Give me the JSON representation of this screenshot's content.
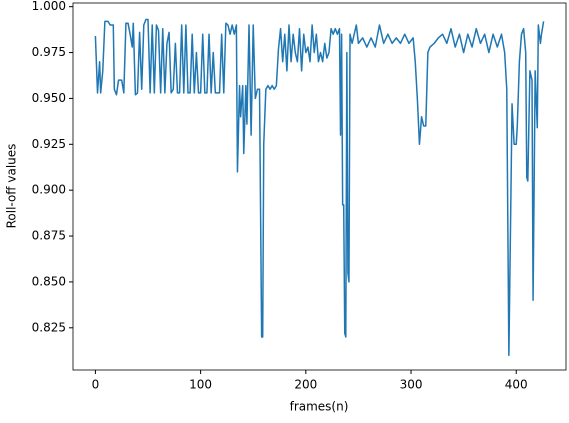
{
  "chart_data": {
    "type": "line",
    "xlabel": "frames(n)",
    "ylabel": "Roll-off values",
    "xlim": [
      -21.3,
      447.3
    ],
    "ylim": [
      0.802,
      1.002
    ],
    "xticks": [
      0,
      100,
      200,
      300,
      400
    ],
    "yticks": [
      0.825,
      {
        "value": 0.85,
        "label": "0.850"
      },
      0.875,
      {
        "value": 0.9,
        "label": "0.900"
      },
      0.925,
      {
        "value": 0.95,
        "label": "0.950"
      },
      0.975,
      {
        "value": 1.0,
        "label": "1.000"
      }
    ],
    "grid": false,
    "series": [
      {
        "color": "#1f77b4",
        "x": [
          0,
          2,
          4,
          5,
          7,
          9,
          12,
          14,
          17,
          18,
          20,
          22,
          25,
          27,
          29,
          31,
          33,
          35,
          36,
          38,
          40,
          42,
          44,
          46,
          48,
          50,
          52,
          54,
          56,
          58,
          60,
          62,
          64,
          66,
          68,
          70,
          72,
          74,
          76,
          78,
          80,
          82,
          84,
          86,
          88,
          90,
          92,
          94,
          96,
          98,
          100,
          102,
          104,
          106,
          108,
          110,
          112,
          114,
          116,
          118,
          120,
          122,
          124,
          126,
          128,
          130,
          132,
          134,
          135,
          137,
          138,
          140,
          141,
          143,
          144,
          146,
          148,
          150,
          152,
          154,
          156,
          158,
          159,
          160,
          162,
          164,
          166,
          168,
          170,
          172,
          174,
          176,
          178,
          180,
          182,
          184,
          186,
          188,
          190,
          192,
          194,
          196,
          198,
          200,
          202,
          204,
          206,
          208,
          210,
          212,
          214,
          216,
          218,
          220,
          222,
          224,
          226,
          228,
          230,
          232,
          233,
          234,
          235,
          236,
          237,
          238,
          239,
          240,
          241,
          242,
          244,
          246,
          248,
          250,
          254,
          258,
          262,
          266,
          270,
          274,
          278,
          282,
          286,
          290,
          294,
          298,
          302,
          304,
          306,
          308,
          310,
          312,
          314,
          316,
          318,
          322,
          326,
          330,
          334,
          338,
          342,
          346,
          350,
          354,
          358,
          362,
          366,
          370,
          374,
          378,
          382,
          386,
          389,
          391,
          393,
          395,
          396,
          398,
          400,
          401,
          403,
          405,
          407,
          409,
          410,
          411,
          413,
          415,
          416,
          418,
          420,
          421,
          423,
          424,
          426
        ],
        "values": [
          0.984,
          0.953,
          0.97,
          0.953,
          0.965,
          0.992,
          0.992,
          0.99,
          0.99,
          0.955,
          0.952,
          0.96,
          0.96,
          0.953,
          0.991,
          0.991,
          0.985,
          0.978,
          0.991,
          0.952,
          0.953,
          0.986,
          0.955,
          0.99,
          0.993,
          0.993,
          0.953,
          0.99,
          0.953,
          0.99,
          0.987,
          0.953,
          0.988,
          0.953,
          0.98,
          0.986,
          0.953,
          0.955,
          0.98,
          0.953,
          0.953,
          0.99,
          0.953,
          0.99,
          0.953,
          0.953,
          0.985,
          0.953,
          0.975,
          0.953,
          0.953,
          0.985,
          0.953,
          0.953,
          0.985,
          0.953,
          0.975,
          0.953,
          0.953,
          0.953,
          0.985,
          0.953,
          0.991,
          0.99,
          0.985,
          0.99,
          0.985,
          0.99,
          0.91,
          0.957,
          0.94,
          0.957,
          0.92,
          0.957,
          0.936,
          0.99,
          0.93,
          0.99,
          0.95,
          0.955,
          0.955,
          0.82,
          0.82,
          0.925,
          0.955,
          0.957,
          0.955,
          0.957,
          0.955,
          0.957,
          0.977,
          0.988,
          0.97,
          0.985,
          0.965,
          0.99,
          0.97,
          0.985,
          0.975,
          0.97,
          0.988,
          0.965,
          0.985,
          0.975,
          0.978,
          0.97,
          0.99,
          0.975,
          0.985,
          0.97,
          0.975,
          0.97,
          0.98,
          0.972,
          0.975,
          0.988,
          0.985,
          0.988,
          0.985,
          0.988,
          0.93,
          0.985,
          0.892,
          0.892,
          0.822,
          0.82,
          0.975,
          0.855,
          0.85,
          0.985,
          0.98,
          0.985,
          0.99,
          0.98,
          0.983,
          0.978,
          0.983,
          0.978,
          0.99,
          0.98,
          0.985,
          0.98,
          0.983,
          0.98,
          0.985,
          0.98,
          0.983,
          0.97,
          0.95,
          0.925,
          0.94,
          0.935,
          0.935,
          0.975,
          0.978,
          0.98,
          0.983,
          0.985,
          0.98,
          0.988,
          0.978,
          0.985,
          0.975,
          0.985,
          0.978,
          0.988,
          0.98,
          0.985,
          0.975,
          0.985,
          0.978,
          0.985,
          0.975,
          0.955,
          0.81,
          0.9,
          0.947,
          0.925,
          0.925,
          0.935,
          0.97,
          0.985,
          0.988,
          0.975,
          0.907,
          0.905,
          0.965,
          0.96,
          0.84,
          0.965,
          0.934,
          0.99,
          0.98,
          0.985,
          0.992
        ]
      }
    ]
  }
}
